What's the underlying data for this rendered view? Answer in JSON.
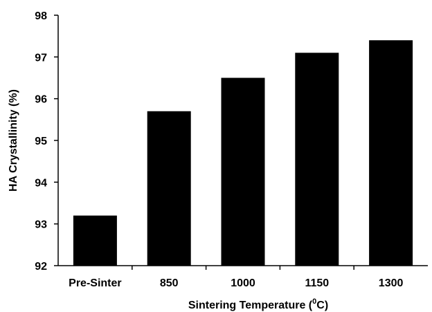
{
  "chart_data": {
    "type": "bar",
    "categories": [
      "Pre-Sinter",
      "850",
      "1000",
      "1150",
      "1300"
    ],
    "values": [
      93.2,
      95.7,
      96.5,
      97.1,
      97.4
    ],
    "title": "",
    "xlabel": "Sintering Temperature (",
    "xlabel_sup": "0",
    "xlabel_suffix": "C)",
    "ylabel": "HA Crystallinity (%)",
    "ylim": [
      92,
      98
    ],
    "yticks": [
      "92",
      "93",
      "94",
      "95",
      "96",
      "97",
      "98"
    ],
    "grid": false,
    "bar_color": "#000000"
  }
}
